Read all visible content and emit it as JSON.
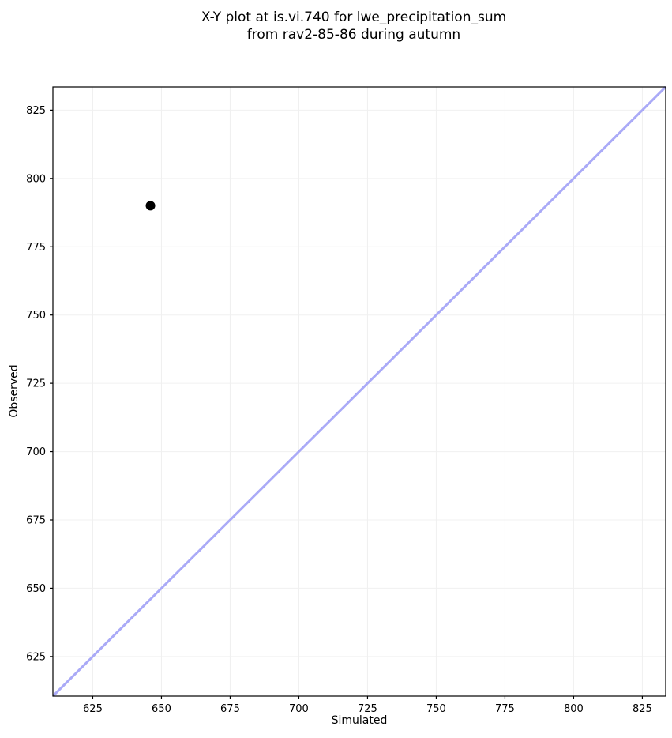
{
  "chart_data": {
    "type": "scatter",
    "title": "X-Y plot at is.vi.740 for lwe_precipitation_sum\nfrom rav2-85-86 during autumn",
    "title_lines": [
      "X-Y plot at is.vi.740 for lwe_precipitation_sum",
      "from rav2-85-86 during autumn"
    ],
    "xlabel": "Simulated",
    "ylabel": "Observed",
    "xlim": [
      610.5,
      833.5
    ],
    "ylim": [
      610.5,
      833.5
    ],
    "xticks": [
      625,
      650,
      675,
      700,
      725,
      750,
      775,
      800,
      825
    ],
    "yticks": [
      625,
      650,
      675,
      700,
      725,
      750,
      775,
      800,
      825
    ],
    "grid": true,
    "legend": false,
    "series": [
      {
        "name": "identity-line",
        "type": "line",
        "x": [
          610.5,
          833.5
        ],
        "y": [
          610.5,
          833.5
        ],
        "color": "#aaaaf7",
        "line_width": 3
      },
      {
        "name": "observed-vs-simulated-point",
        "type": "scatter",
        "x": [
          646
        ],
        "y": [
          790
        ],
        "color": "#000000",
        "marker_radius": 6
      }
    ],
    "style": {
      "background": "#ffffff",
      "grid_color": "#f0f0f0",
      "spine_color": "#000000",
      "tick_color": "#000000",
      "text_color": "#000000"
    }
  }
}
